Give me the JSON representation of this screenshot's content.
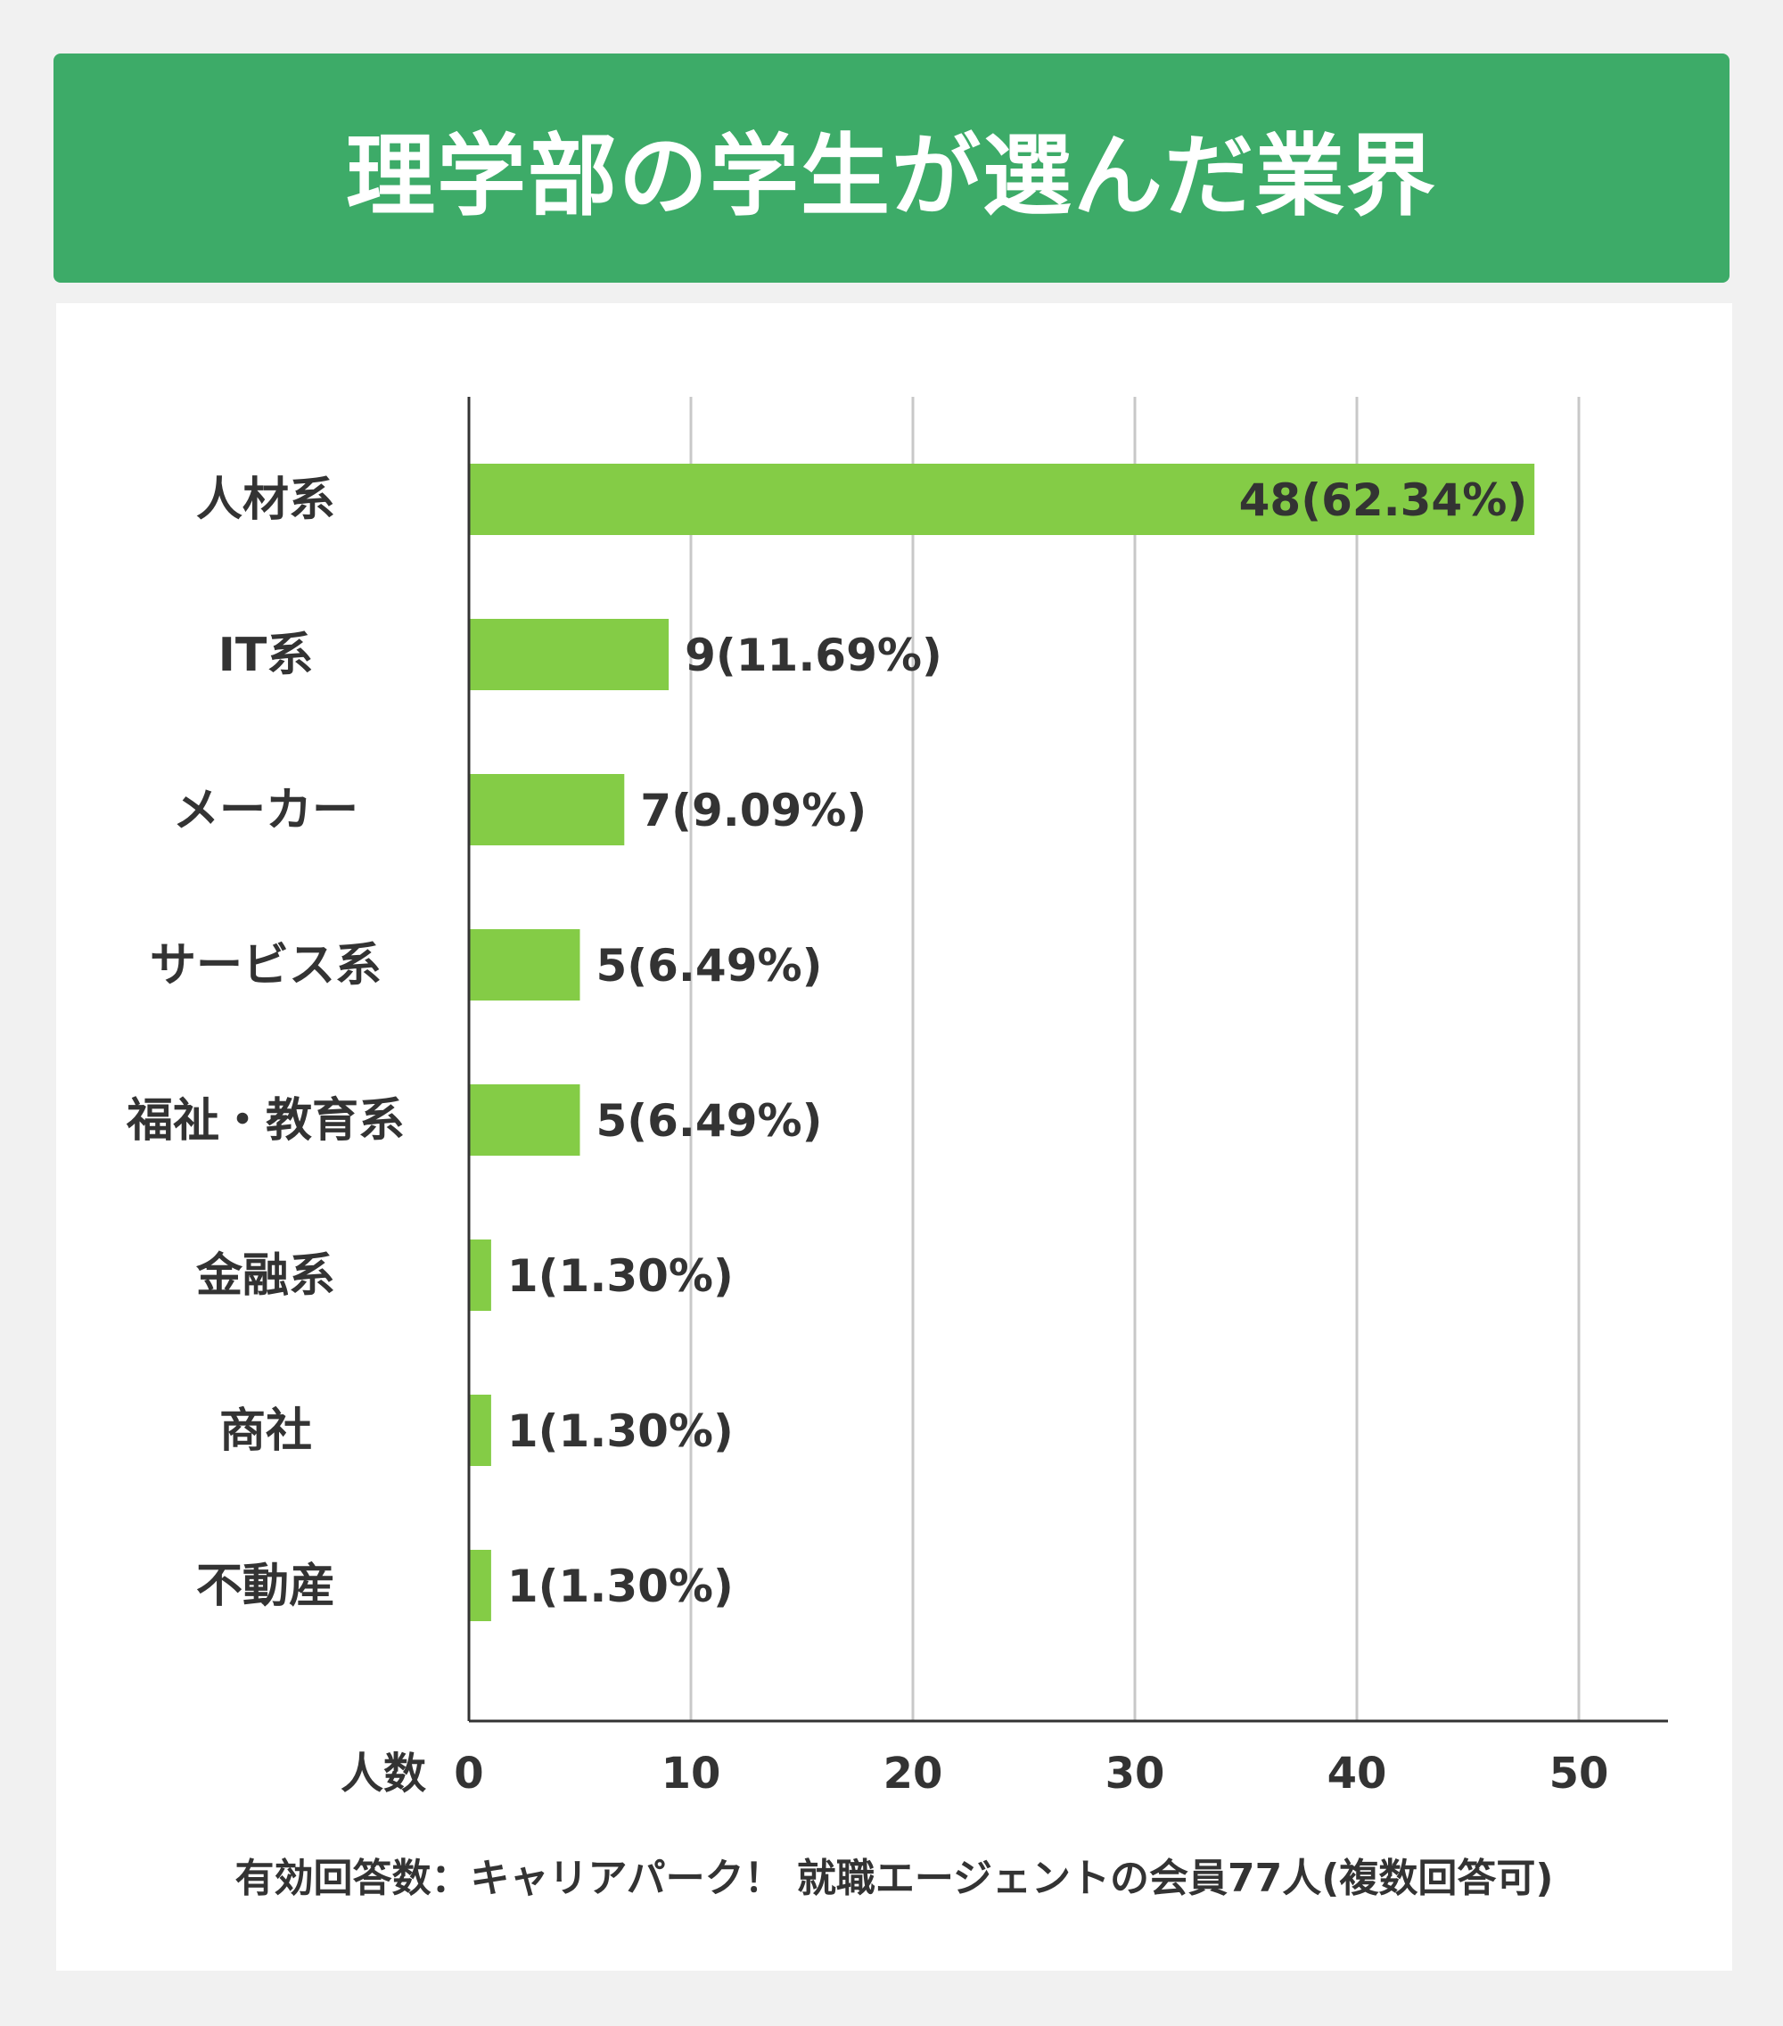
{
  "header": {
    "title": "理学部の学生が選んだ業界"
  },
  "colors": {
    "banner": "#3dab68",
    "bar": "#84cc46",
    "grid": "#c8c8c8",
    "axis": "#333333"
  },
  "chart_data": {
    "type": "bar",
    "orientation": "horizontal",
    "categories": [
      "人材系",
      "IT系",
      "メーカー",
      "サービス系",
      "福祉・教育系",
      "金融系",
      "商社",
      "不動産"
    ],
    "values": [
      48,
      9,
      7,
      5,
      5,
      1,
      1,
      1
    ],
    "data_labels": [
      "48(62.34%)",
      "9(11.69%)",
      "7(9.09%)",
      "5(6.49%)",
      "5(6.49%)",
      "1(1.30%)",
      "1(1.30%)",
      "1(1.30%)"
    ],
    "x_ticks": [
      "0",
      "10",
      "20",
      "30",
      "40",
      "50"
    ],
    "xlim": [
      0,
      54.5
    ],
    "xlabel": "人数",
    "grid": true,
    "note": "有効回答数：キャリアパーク！ 就職エージェントの会員77人(複数回答可)"
  }
}
